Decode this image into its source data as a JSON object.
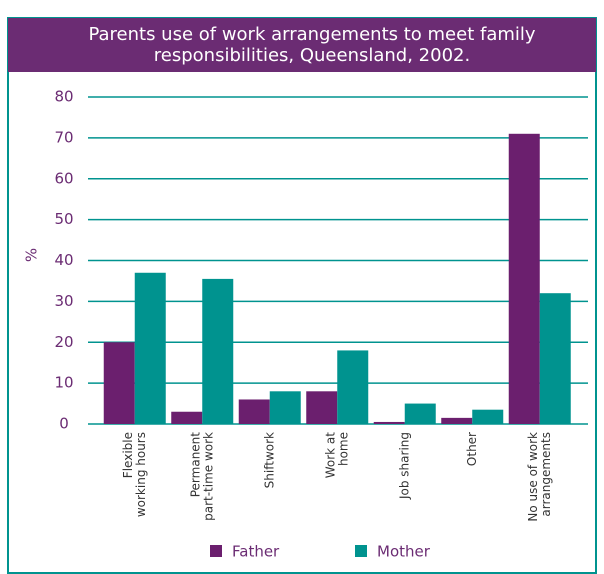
{
  "chart_data": {
    "type": "bar",
    "title": [
      "Parents use of work arrangements to meet family",
      "responsibilities, Queensland, 2002."
    ],
    "y_label": "%",
    "categories": [
      [
        "Flexible",
        "working hours"
      ],
      [
        "Permanent",
        "part-time work"
      ],
      [
        "Shiftwork"
      ],
      [
        "Work at",
        "home"
      ],
      [
        "Job sharing"
      ],
      [
        "Other"
      ],
      [
        "No use of work",
        "arrangements"
      ]
    ],
    "series": [
      {
        "name": "Father",
        "color": "#6b1f6e",
        "values": [
          20,
          3,
          6,
          8,
          0.5,
          1.5,
          71
        ]
      },
      {
        "name": "Mother",
        "color": "#00938f",
        "values": [
          37,
          35.5,
          8,
          18,
          5,
          3.5,
          32
        ]
      }
    ],
    "ylim": [
      0,
      80
    ],
    "yticks": [
      0,
      10,
      20,
      30,
      40,
      50,
      60,
      70,
      80
    ],
    "grid": true
  }
}
